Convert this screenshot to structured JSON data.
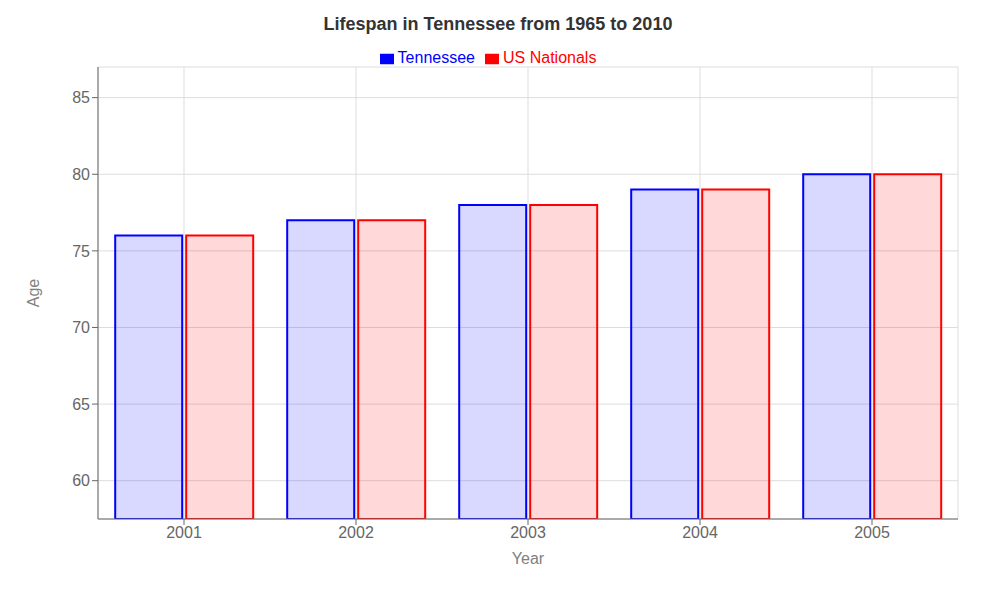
{
  "chart_data": {
    "type": "bar",
    "title": "Lifespan in Tennessee from 1965 to 2010",
    "x_label": "Year",
    "y_label": "Age",
    "categories": [
      "2001",
      "2002",
      "2003",
      "2004",
      "2005"
    ],
    "series": [
      {
        "name": "Tennessee",
        "color": "#0000ff",
        "values": [
          76,
          77,
          78,
          79,
          80
        ]
      },
      {
        "name": "US Nationals",
        "color": "#ff0000",
        "values": [
          76,
          77,
          78,
          79,
          80
        ]
      }
    ],
    "ylim": [
      57.5,
      87
    ],
    "yticks": [
      60,
      65,
      70,
      75,
      80,
      85
    ],
    "grid": true,
    "legend": "top"
  }
}
